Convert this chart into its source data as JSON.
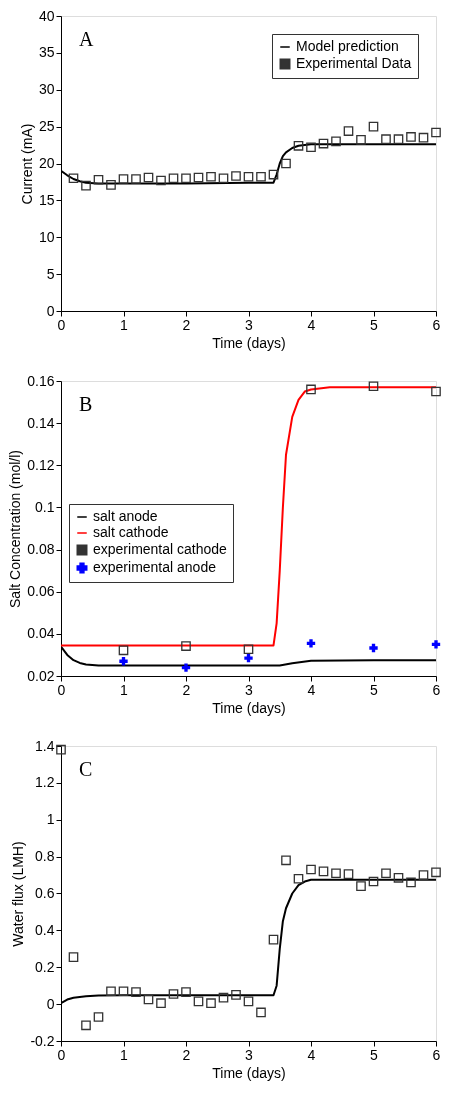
{
  "chart_data": [
    {
      "type": "line",
      "xlabel": "Time (days)",
      "ylabel": "Current (mA)",
      "xlim": [
        0,
        6
      ],
      "xticks": [
        0,
        1,
        2,
        3,
        4,
        5,
        6
      ],
      "ylim": [
        0,
        40
      ],
      "yticks": [
        0,
        5,
        10,
        15,
        20,
        25,
        30,
        35,
        40
      ],
      "grid": false,
      "legend": "top right",
      "annotations": [
        "A"
      ],
      "series": [
        {
          "name": "Model prediction",
          "type": "line",
          "color": "#000000",
          "x": [
            0,
            0.1,
            0.2,
            0.3,
            0.4,
            0.6,
            1.0,
            2.0,
            3.0,
            3.4,
            3.45,
            3.5,
            3.55,
            3.6,
            3.7,
            3.8,
            3.9,
            4.0,
            5.0,
            6.0
          ],
          "values": [
            19,
            18.4,
            17.9,
            17.6,
            17.4,
            17.3,
            17.3,
            17.3,
            17.4,
            17.4,
            18.5,
            20,
            21,
            21.5,
            22.1,
            22.4,
            22.5,
            22.6,
            22.6,
            22.6
          ]
        },
        {
          "name": "Experimental Data",
          "type": "scatter",
          "marker": "square",
          "color": "#333333",
          "x": [
            0.2,
            0.4,
            0.6,
            0.8,
            1.0,
            1.2,
            1.4,
            1.6,
            1.8,
            2.0,
            2.2,
            2.4,
            2.6,
            2.8,
            3.0,
            3.2,
            3.4,
            3.6,
            3.8,
            4.0,
            4.2,
            4.4,
            4.6,
            4.8,
            5.0,
            5.2,
            5.4,
            5.6,
            5.8,
            6.0
          ],
          "values": [
            18,
            17,
            17.8,
            17.1,
            17.9,
            17.9,
            18.1,
            17.7,
            18,
            18,
            18.1,
            18.2,
            18,
            18.3,
            18.2,
            18.2,
            18.5,
            20,
            22.4,
            22.2,
            22.7,
            23,
            24.4,
            23.2,
            25,
            23.3,
            23.3,
            23.6,
            23.5,
            24.2
          ]
        }
      ]
    },
    {
      "type": "line",
      "xlabel": "Time (days)",
      "ylabel": "Salt Concentration (mol/l)",
      "xlim": [
        0,
        6
      ],
      "xticks": [
        0,
        1,
        2,
        3,
        4,
        5,
        6
      ],
      "ylim": [
        0.02,
        0.16
      ],
      "yticks": [
        0.02,
        0.04,
        0.06,
        0.08,
        0.1,
        0.12,
        0.14,
        0.16
      ],
      "grid": false,
      "legend": "left",
      "annotations": [
        "B"
      ],
      "series": [
        {
          "name": "salt anode",
          "type": "line",
          "color": "#000000",
          "x": [
            0,
            0.1,
            0.2,
            0.3,
            0.4,
            0.6,
            1.0,
            2.0,
            3.0,
            3.5,
            3.7,
            4.0,
            5.0,
            6.0
          ],
          "values": [
            0.034,
            0.03,
            0.0275,
            0.0262,
            0.0255,
            0.025,
            0.025,
            0.025,
            0.025,
            0.025,
            0.026,
            0.0272,
            0.0275,
            0.0275
          ]
        },
        {
          "name": "salt cathode",
          "type": "line",
          "color": "#ff0000",
          "x": [
            0,
            1.0,
            2.0,
            3.0,
            3.4,
            3.45,
            3.5,
            3.55,
            3.6,
            3.7,
            3.8,
            3.9,
            4.0,
            4.3,
            5.0,
            6.0
          ],
          "values": [
            0.0345,
            0.0345,
            0.0345,
            0.0345,
            0.0345,
            0.045,
            0.07,
            0.1,
            0.125,
            0.143,
            0.151,
            0.155,
            0.156,
            0.157,
            0.157,
            0.157
          ]
        },
        {
          "name": "experimental cathode",
          "type": "scatter",
          "marker": "square",
          "color": "#333333",
          "x": [
            1,
            2,
            3,
            4,
            5,
            6
          ],
          "values": [
            0.0322,
            0.0342,
            0.0327,
            0.156,
            0.1575,
            0.155
          ]
        },
        {
          "name": "experimental anode",
          "type": "scatter",
          "marker": "cross",
          "color": "#0000ff",
          "x": [
            1,
            2,
            3,
            4,
            5,
            6
          ],
          "values": [
            0.027,
            0.024,
            0.0285,
            0.0355,
            0.0333,
            0.035
          ]
        }
      ]
    },
    {
      "type": "line",
      "xlabel": "Time (days)",
      "ylabel": "Water flux (LMH)",
      "xlim": [
        0,
        6
      ],
      "xticks": [
        0,
        1,
        2,
        3,
        4,
        5,
        6
      ],
      "ylim": [
        -0.2,
        1.4
      ],
      "yticks": [
        -0.2,
        0,
        0.2,
        0.4,
        0.6,
        0.8,
        1,
        1.2,
        1.4
      ],
      "grid": false,
      "annotations": [
        "C"
      ],
      "series": [
        {
          "type": "line",
          "color": "#000000",
          "x": [
            0,
            0.1,
            0.2,
            0.4,
            0.6,
            1.0,
            2.0,
            3.0,
            3.4,
            3.45,
            3.5,
            3.55,
            3.6,
            3.7,
            3.8,
            3.9,
            4.0,
            5.0,
            6.0
          ],
          "values": [
            0.005,
            0.025,
            0.035,
            0.043,
            0.047,
            0.048,
            0.048,
            0.048,
            0.048,
            0.1,
            0.3,
            0.45,
            0.52,
            0.6,
            0.645,
            0.665,
            0.675,
            0.675,
            0.675
          ]
        },
        {
          "type": "scatter",
          "marker": "square",
          "color": "#333333",
          "x": [
            0,
            0.2,
            0.4,
            0.6,
            0.8,
            1.0,
            1.2,
            1.4,
            1.6,
            1.8,
            2.0,
            2.2,
            2.4,
            2.6,
            2.8,
            3.0,
            3.2,
            3.4,
            3.6,
            3.8,
            4.0,
            4.2,
            4.4,
            4.6,
            4.8,
            5.0,
            5.2,
            5.4,
            5.6,
            5.8,
            6.0
          ],
          "values": [
            1.38,
            0.255,
            -0.115,
            -0.07,
            0.07,
            0.07,
            0.065,
            0.025,
            0.005,
            0.055,
            0.065,
            0.015,
            0.005,
            0.035,
            0.05,
            0.015,
            -0.045,
            0.35,
            0.78,
            0.68,
            0.73,
            0.72,
            0.71,
            0.705,
            0.64,
            0.665,
            0.71,
            0.685,
            0.66,
            0.7,
            0.715
          ]
        }
      ]
    }
  ]
}
